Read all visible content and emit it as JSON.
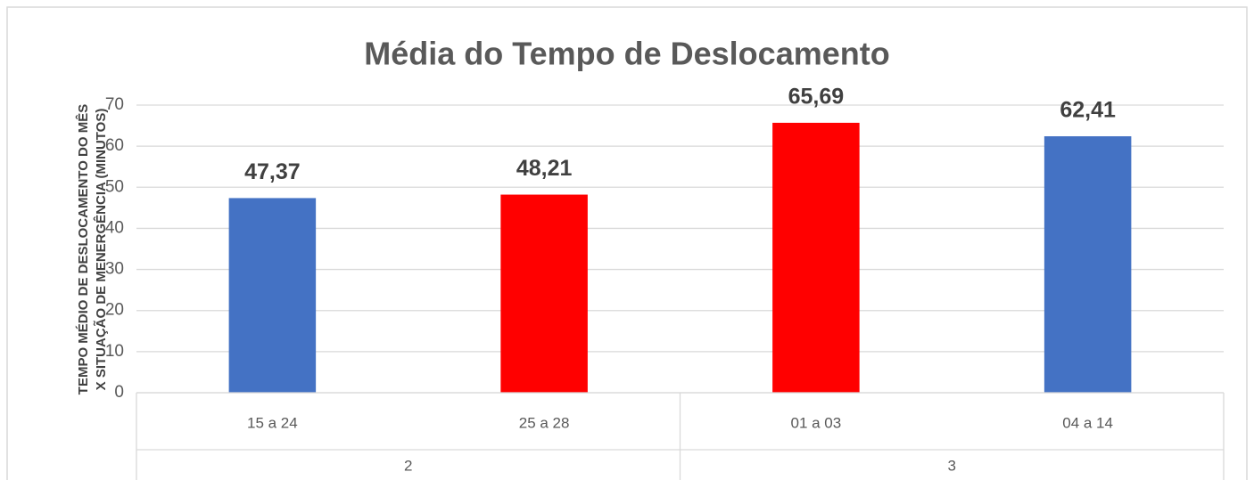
{
  "chart_data": {
    "type": "bar",
    "title": "Média do Tempo de Deslocamento",
    "ylabel": [
      "TEMPO MÉDIO DE DESLOCAMENTO DO MÊS",
      "X SITUAÇÃO DE MENERGÊNCIA (MINUTOS)"
    ],
    "categories": [
      "15 a 24",
      "25 a 28",
      "01 a 03",
      "04 a 14"
    ],
    "groups": [
      {
        "label": "2",
        "count": 2
      },
      {
        "label": "3",
        "count": 2
      }
    ],
    "values": [
      47.37,
      48.21,
      65.69,
      62.41
    ],
    "value_labels": [
      "47,37",
      "48,21",
      "65,69",
      "62,41"
    ],
    "colors": [
      "#4472c4",
      "#ff0000",
      "#ff0000",
      "#4472c4"
    ],
    "ylim": [
      0,
      70
    ],
    "yticks": [
      0,
      10,
      20,
      30,
      40,
      50,
      60,
      70
    ],
    "grid": true
  }
}
